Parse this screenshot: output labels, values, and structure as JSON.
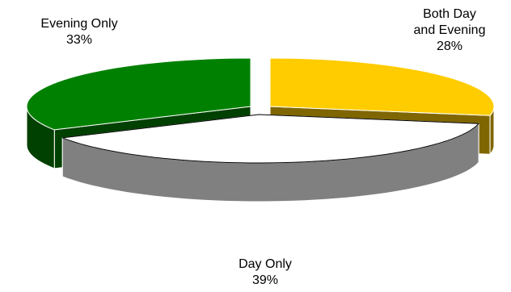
{
  "chart_data": {
    "type": "pie",
    "title": "",
    "style": "exploded-3d",
    "slices": [
      {
        "category": "Evening Only",
        "category_line1": "Evening Only",
        "category_line2": "",
        "value": 33,
        "value_label": "33%",
        "top_color": "#008000",
        "side_color": "#004000"
      },
      {
        "category": "Both Day and Evening",
        "category_line1": "Both Day",
        "category_line2": "and Evening",
        "value": 28,
        "value_label": "28%",
        "top_color": "#FFCC00",
        "side_color": "#806600"
      },
      {
        "category": "Day Only",
        "category_line1": "Day Only",
        "category_line2": "",
        "value": 39,
        "value_label": "39%",
        "top_color": "#FFFFFF",
        "side_color": "#808080"
      }
    ],
    "legend": false
  }
}
